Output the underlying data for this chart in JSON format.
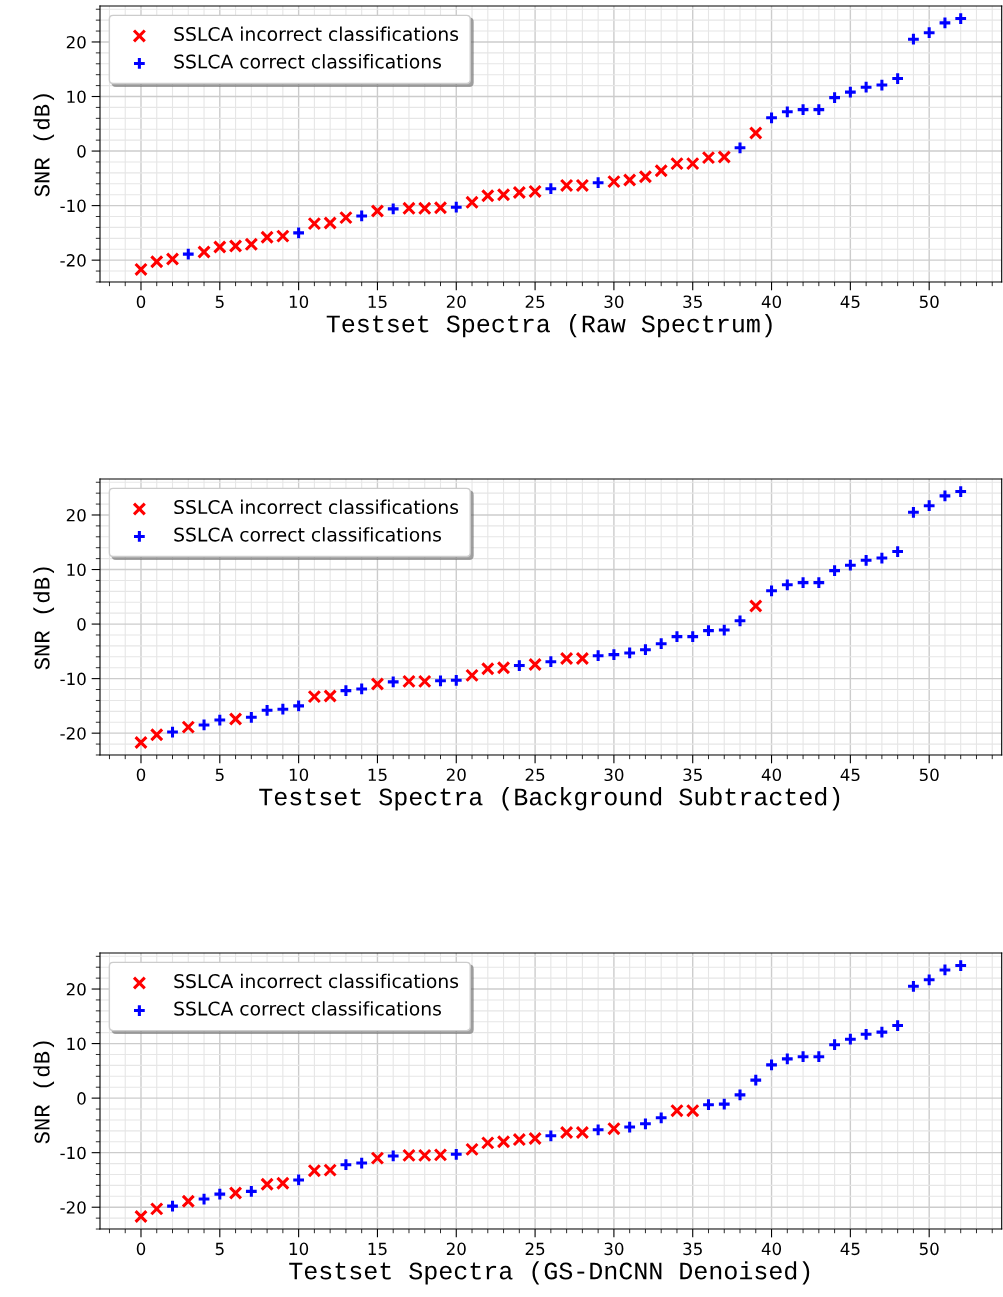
{
  "chart_data": [
    {
      "type": "scatter",
      "xlabel": "Testset Spectra (Raw Spectrum)",
      "ylabel": "SNR (dB)",
      "xlim": [
        -2.6,
        54.6
      ],
      "ylim": [
        -24.0,
        26.6
      ],
      "xticks": [
        0,
        5,
        10,
        15,
        20,
        25,
        30,
        35,
        40,
        45,
        50
      ],
      "yticks": [
        -20,
        -10,
        0,
        10,
        20
      ],
      "grid": true,
      "legend": "top left",
      "series": [
        {
          "name": "SSLCA incorrect classifications",
          "color": "#ff0000",
          "marker": "cross",
          "x": [
            0,
            1,
            2,
            4,
            5,
            6,
            7,
            8,
            9,
            11,
            12,
            13,
            15,
            17,
            18,
            19,
            21,
            22,
            23,
            24,
            25,
            27,
            28,
            30,
            31,
            32,
            33,
            34,
            35,
            36,
            37,
            39
          ],
          "values": [
            -21.7,
            -20.3,
            -19.8,
            -18.5,
            -17.6,
            -17.4,
            -17.1,
            -15.8,
            -15.6,
            -13.3,
            -13.2,
            -12.2,
            -11.0,
            -10.5,
            -10.5,
            -10.4,
            -9.4,
            -8.2,
            -8.0,
            -7.6,
            -7.4,
            -6.3,
            -6.3,
            -5.6,
            -5.3,
            -4.7,
            -3.6,
            -2.3,
            -2.3,
            -1.2,
            -1.1,
            3.3
          ]
        },
        {
          "name": "SSLCA correct classifications",
          "color": "#0000ff",
          "marker": "plus",
          "x": [
            3,
            10,
            14,
            16,
            20,
            26,
            29,
            38,
            40,
            41,
            42,
            43,
            44,
            45,
            46,
            47,
            48,
            49,
            50,
            51,
            52
          ],
          "values": [
            -18.9,
            -15.0,
            -11.9,
            -10.6,
            -10.3,
            -6.9,
            -5.8,
            0.6,
            6.1,
            7.2,
            7.6,
            7.6,
            9.8,
            10.8,
            11.7,
            12.1,
            13.3,
            20.5,
            21.7,
            23.5,
            24.3
          ]
        }
      ]
    },
    {
      "type": "scatter",
      "xlabel": "Testset Spectra (Background Subtracted)",
      "ylabel": "SNR (dB)",
      "xlim": [
        -2.6,
        54.6
      ],
      "ylim": [
        -24.0,
        26.6
      ],
      "xticks": [
        0,
        5,
        10,
        15,
        20,
        25,
        30,
        35,
        40,
        45,
        50
      ],
      "yticks": [
        -20,
        -10,
        0,
        10,
        20
      ],
      "grid": true,
      "legend": "top left",
      "series": [
        {
          "name": "SSLCA incorrect classifications",
          "color": "#ff0000",
          "marker": "cross",
          "x": [
            0,
            1,
            3,
            6,
            11,
            12,
            15,
            17,
            18,
            21,
            22,
            23,
            25,
            27,
            28,
            39
          ],
          "values": [
            -21.7,
            -20.3,
            -18.9,
            -17.4,
            -13.3,
            -13.2,
            -11.0,
            -10.5,
            -10.5,
            -9.4,
            -8.2,
            -8.0,
            -7.4,
            -6.3,
            -6.3,
            3.3
          ]
        },
        {
          "name": "SSLCA correct classifications",
          "color": "#0000ff",
          "marker": "plus",
          "x": [
            2,
            4,
            5,
            7,
            8,
            9,
            10,
            13,
            14,
            16,
            19,
            20,
            24,
            26,
            29,
            30,
            31,
            32,
            33,
            34,
            35,
            36,
            37,
            38,
            40,
            41,
            42,
            43,
            44,
            45,
            46,
            47,
            48,
            49,
            50,
            51,
            52
          ],
          "values": [
            -19.8,
            -18.5,
            -17.6,
            -17.1,
            -15.8,
            -15.6,
            -15.0,
            -12.2,
            -11.9,
            -10.6,
            -10.4,
            -10.3,
            -7.6,
            -6.9,
            -5.8,
            -5.6,
            -5.3,
            -4.7,
            -3.6,
            -2.3,
            -2.3,
            -1.2,
            -1.1,
            0.6,
            6.1,
            7.2,
            7.6,
            7.6,
            9.8,
            10.8,
            11.7,
            12.1,
            13.3,
            20.5,
            21.7,
            23.5,
            24.3
          ]
        }
      ]
    },
    {
      "type": "scatter",
      "xlabel": "Testset Spectra (GS-DnCNN Denoised)",
      "ylabel": "SNR (dB)",
      "xlim": [
        -2.6,
        54.6
      ],
      "ylim": [
        -24.0,
        26.6
      ],
      "xticks": [
        0,
        5,
        10,
        15,
        20,
        25,
        30,
        35,
        40,
        45,
        50
      ],
      "yticks": [
        -20,
        -10,
        0,
        10,
        20
      ],
      "grid": true,
      "legend": "top left",
      "series": [
        {
          "name": "SSLCA incorrect classifications",
          "color": "#ff0000",
          "marker": "cross",
          "x": [
            0,
            1,
            3,
            6,
            8,
            9,
            11,
            12,
            15,
            17,
            18,
            19,
            21,
            22,
            23,
            24,
            25,
            27,
            28,
            30,
            34,
            35
          ],
          "values": [
            -21.7,
            -20.3,
            -18.9,
            -17.4,
            -15.8,
            -15.6,
            -13.3,
            -13.2,
            -11.0,
            -10.5,
            -10.5,
            -10.4,
            -9.4,
            -8.2,
            -8.0,
            -7.6,
            -7.4,
            -6.3,
            -6.3,
            -5.6,
            -2.3,
            -2.3
          ]
        },
        {
          "name": "SSLCA correct classifications",
          "color": "#0000ff",
          "marker": "plus",
          "x": [
            2,
            4,
            5,
            7,
            10,
            13,
            14,
            16,
            20,
            26,
            29,
            31,
            32,
            33,
            36,
            37,
            38,
            39,
            40,
            41,
            42,
            43,
            44,
            45,
            46,
            47,
            48,
            49,
            50,
            51,
            52
          ],
          "values": [
            -19.8,
            -18.5,
            -17.6,
            -17.1,
            -15.0,
            -12.2,
            -11.9,
            -10.6,
            -10.3,
            -6.9,
            -5.8,
            -5.3,
            -4.7,
            -3.6,
            -1.2,
            -1.1,
            0.6,
            3.3,
            6.1,
            7.2,
            7.6,
            7.6,
            9.8,
            10.8,
            11.7,
            12.1,
            13.3,
            20.5,
            21.7,
            23.5,
            24.3
          ]
        }
      ]
    }
  ]
}
